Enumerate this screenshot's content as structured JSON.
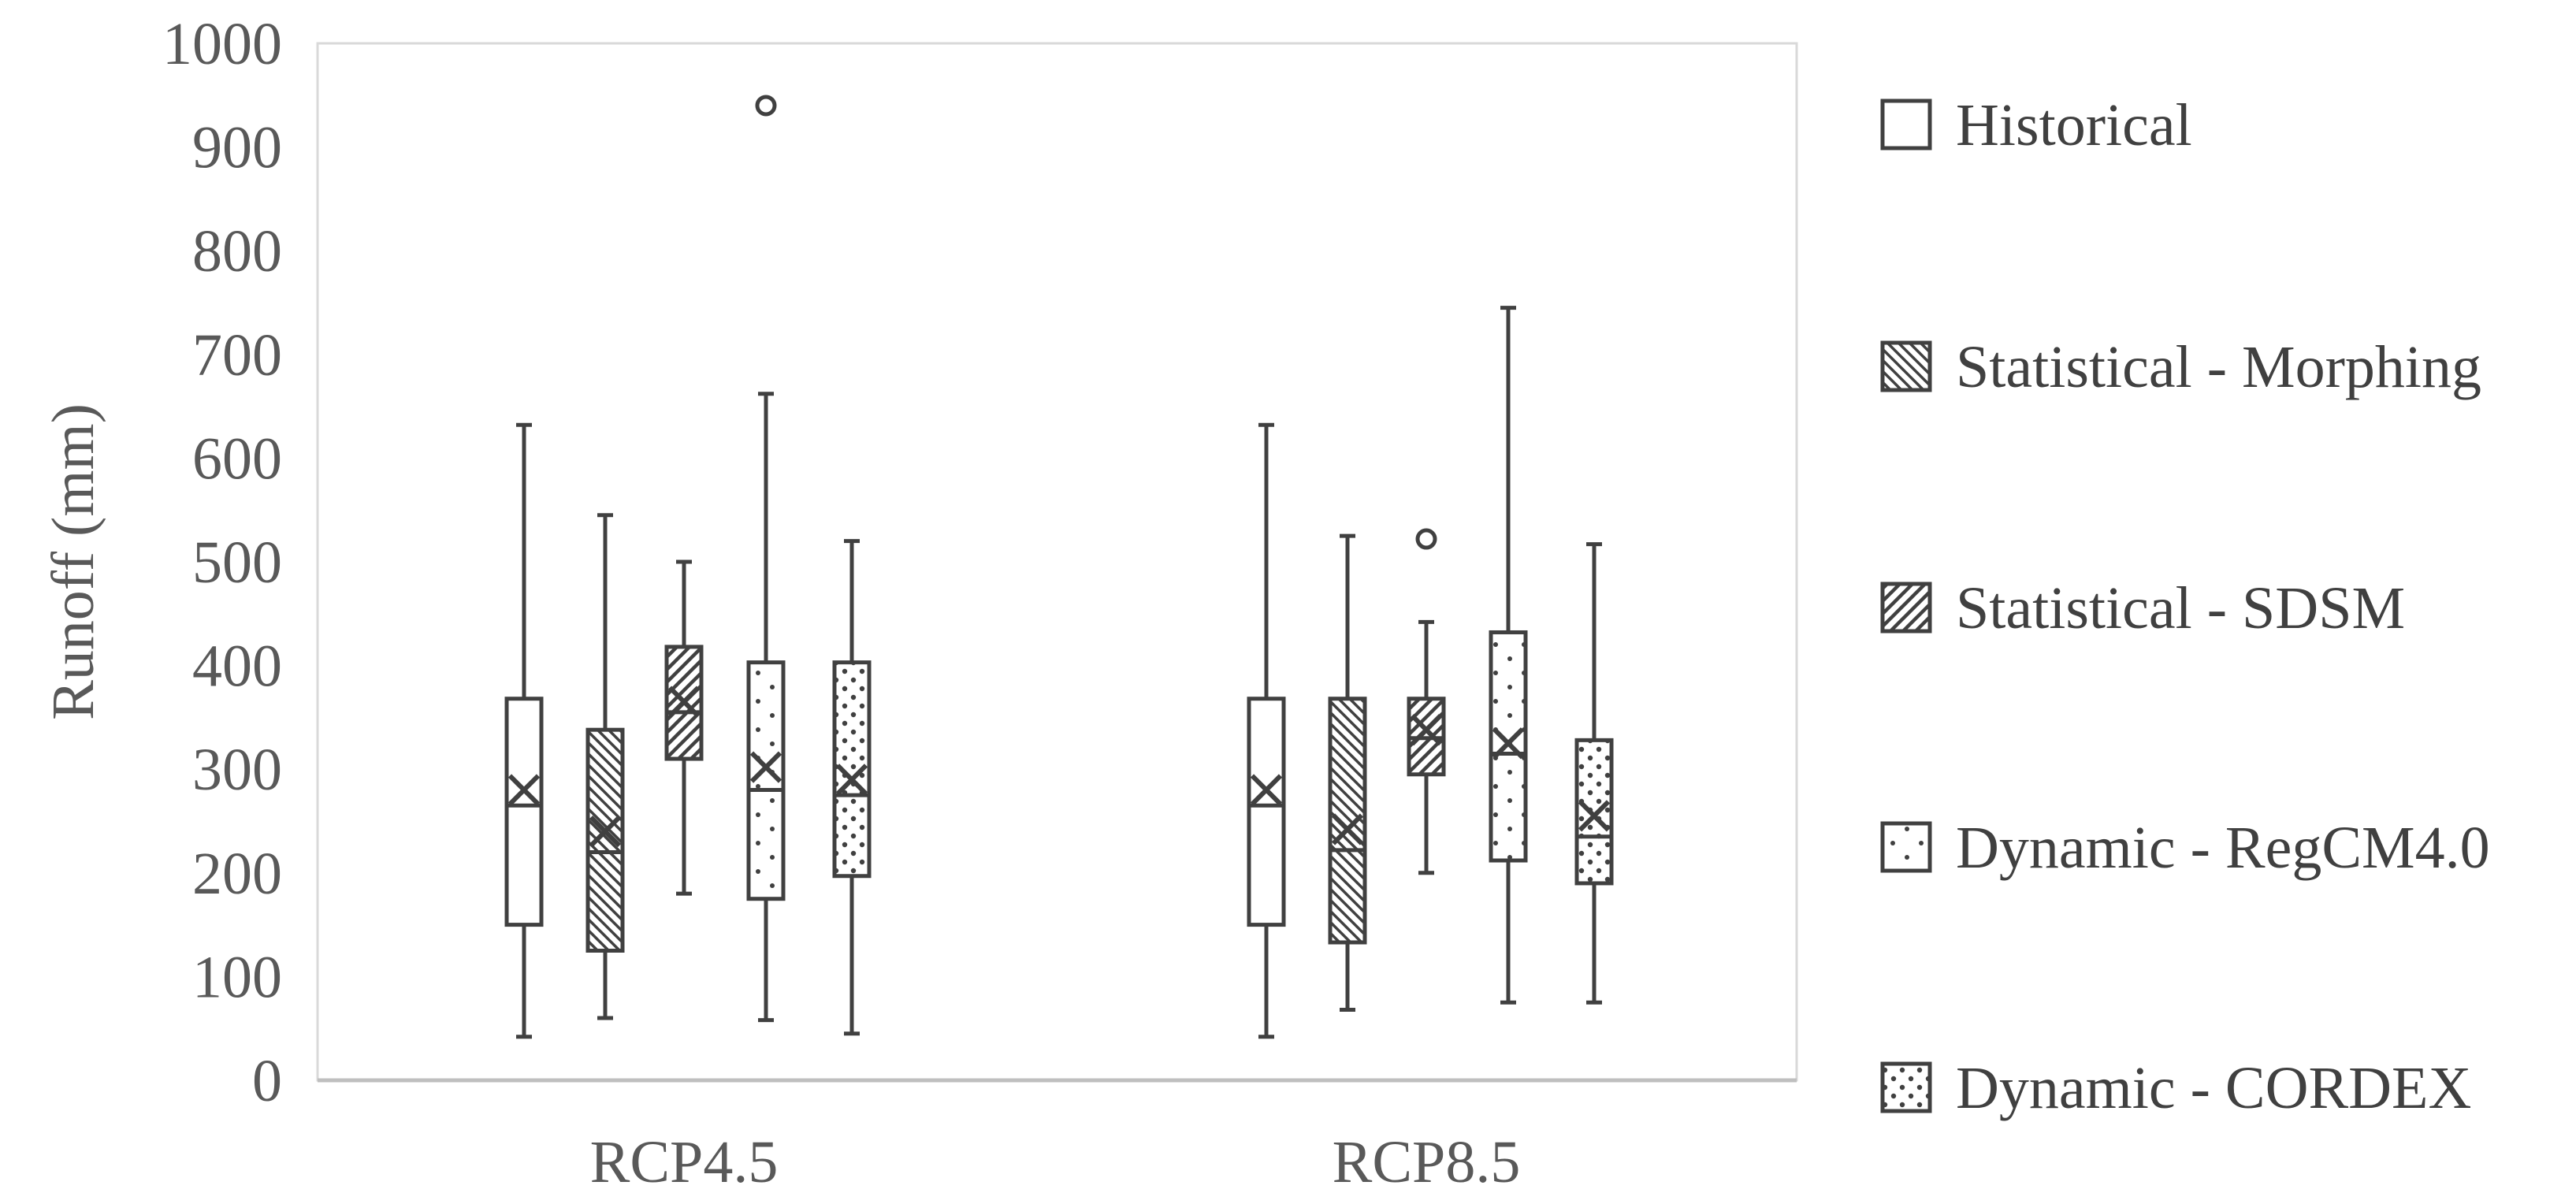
{
  "chart_data": {
    "type": "box",
    "title": "",
    "ylabel": "Runoff (mm)",
    "xlabel": "",
    "ylim": [
      0,
      1000
    ],
    "yticks": [
      "0",
      "100",
      "200",
      "300",
      "400",
      "500",
      "600",
      "700",
      "800",
      "900",
      "1000"
    ],
    "categories": [
      "RCP4.5",
      "RCP8.5"
    ],
    "grid": false,
    "legend_position": "right",
    "line_color": "#404040",
    "series": [
      {
        "name": "Historical",
        "pattern": "none",
        "boxes": [
          {
            "min": 42,
            "q1": 150,
            "median": 265,
            "q3": 368,
            "max": 632,
            "mean": 280,
            "outliers": []
          },
          {
            "min": 42,
            "q1": 150,
            "median": 265,
            "q3": 368,
            "max": 632,
            "mean": 280,
            "outliers": []
          }
        ]
      },
      {
        "name": "Statistical - Morphing",
        "pattern": "dense-diagonal-down",
        "boxes": [
          {
            "min": 60,
            "q1": 125,
            "median": 220,
            "q3": 338,
            "max": 545,
            "mean": 240,
            "outliers": []
          },
          {
            "min": 68,
            "q1": 133,
            "median": 222,
            "q3": 368,
            "max": 525,
            "mean": 242,
            "outliers": []
          }
        ]
      },
      {
        "name": "Statistical - SDSM",
        "pattern": "wide-diagonal-up",
        "boxes": [
          {
            "min": 180,
            "q1": 310,
            "median": 355,
            "q3": 418,
            "max": 500,
            "mean": 365,
            "outliers": []
          },
          {
            "min": 200,
            "q1": 295,
            "median": 330,
            "q3": 368,
            "max": 442,
            "mean": 338,
            "outliers": [
              522
            ]
          }
        ]
      },
      {
        "name": "Dynamic - RegCM4.0",
        "pattern": "sparse-dots",
        "boxes": [
          {
            "min": 58,
            "q1": 175,
            "median": 280,
            "q3": 403,
            "max": 662,
            "mean": 302,
            "outliers": [
              940
            ]
          },
          {
            "min": 75,
            "q1": 212,
            "median": 315,
            "q3": 432,
            "max": 745,
            "mean": 325,
            "outliers": []
          }
        ]
      },
      {
        "name": "Dynamic - CORDEX",
        "pattern": "dense-dots",
        "boxes": [
          {
            "min": 45,
            "q1": 197,
            "median": 275,
            "q3": 403,
            "max": 520,
            "mean": 290,
            "outliers": []
          },
          {
            "min": 75,
            "q1": 190,
            "median": 235,
            "q3": 328,
            "max": 517,
            "mean": 255,
            "outliers": []
          }
        ]
      }
    ]
  }
}
